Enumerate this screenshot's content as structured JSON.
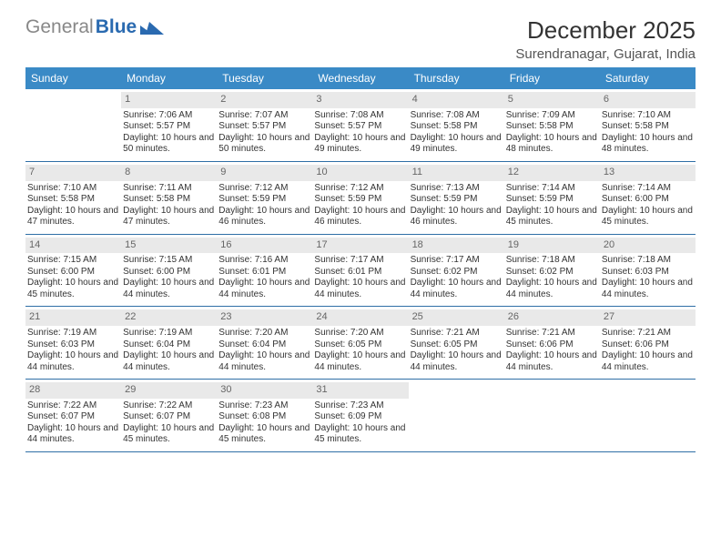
{
  "brand": {
    "part1": "General",
    "part2": "Blue"
  },
  "title": "December 2025",
  "subtitle": "Surendranagar, Gujarat, India",
  "colors": {
    "header_bg": "#3a8ac6",
    "header_text": "#ffffff",
    "row_border": "#2f6fa6",
    "daynum_bg": "#e9e9e9",
    "logo_blue": "#2a6ab0"
  },
  "weekdays": [
    "Sunday",
    "Monday",
    "Tuesday",
    "Wednesday",
    "Thursday",
    "Friday",
    "Saturday"
  ],
  "first_weekday_index": 1,
  "days": [
    {
      "n": 1,
      "sunrise": "7:06 AM",
      "sunset": "5:57 PM",
      "daylight": "10 hours and 50 minutes."
    },
    {
      "n": 2,
      "sunrise": "7:07 AM",
      "sunset": "5:57 PM",
      "daylight": "10 hours and 50 minutes."
    },
    {
      "n": 3,
      "sunrise": "7:08 AM",
      "sunset": "5:57 PM",
      "daylight": "10 hours and 49 minutes."
    },
    {
      "n": 4,
      "sunrise": "7:08 AM",
      "sunset": "5:58 PM",
      "daylight": "10 hours and 49 minutes."
    },
    {
      "n": 5,
      "sunrise": "7:09 AM",
      "sunset": "5:58 PM",
      "daylight": "10 hours and 48 minutes."
    },
    {
      "n": 6,
      "sunrise": "7:10 AM",
      "sunset": "5:58 PM",
      "daylight": "10 hours and 48 minutes."
    },
    {
      "n": 7,
      "sunrise": "7:10 AM",
      "sunset": "5:58 PM",
      "daylight": "10 hours and 47 minutes."
    },
    {
      "n": 8,
      "sunrise": "7:11 AM",
      "sunset": "5:58 PM",
      "daylight": "10 hours and 47 minutes."
    },
    {
      "n": 9,
      "sunrise": "7:12 AM",
      "sunset": "5:59 PM",
      "daylight": "10 hours and 46 minutes."
    },
    {
      "n": 10,
      "sunrise": "7:12 AM",
      "sunset": "5:59 PM",
      "daylight": "10 hours and 46 minutes."
    },
    {
      "n": 11,
      "sunrise": "7:13 AM",
      "sunset": "5:59 PM",
      "daylight": "10 hours and 46 minutes."
    },
    {
      "n": 12,
      "sunrise": "7:14 AM",
      "sunset": "5:59 PM",
      "daylight": "10 hours and 45 minutes."
    },
    {
      "n": 13,
      "sunrise": "7:14 AM",
      "sunset": "6:00 PM",
      "daylight": "10 hours and 45 minutes."
    },
    {
      "n": 14,
      "sunrise": "7:15 AM",
      "sunset": "6:00 PM",
      "daylight": "10 hours and 45 minutes."
    },
    {
      "n": 15,
      "sunrise": "7:15 AM",
      "sunset": "6:00 PM",
      "daylight": "10 hours and 44 minutes."
    },
    {
      "n": 16,
      "sunrise": "7:16 AM",
      "sunset": "6:01 PM",
      "daylight": "10 hours and 44 minutes."
    },
    {
      "n": 17,
      "sunrise": "7:17 AM",
      "sunset": "6:01 PM",
      "daylight": "10 hours and 44 minutes."
    },
    {
      "n": 18,
      "sunrise": "7:17 AM",
      "sunset": "6:02 PM",
      "daylight": "10 hours and 44 minutes."
    },
    {
      "n": 19,
      "sunrise": "7:18 AM",
      "sunset": "6:02 PM",
      "daylight": "10 hours and 44 minutes."
    },
    {
      "n": 20,
      "sunrise": "7:18 AM",
      "sunset": "6:03 PM",
      "daylight": "10 hours and 44 minutes."
    },
    {
      "n": 21,
      "sunrise": "7:19 AM",
      "sunset": "6:03 PM",
      "daylight": "10 hours and 44 minutes."
    },
    {
      "n": 22,
      "sunrise": "7:19 AM",
      "sunset": "6:04 PM",
      "daylight": "10 hours and 44 minutes."
    },
    {
      "n": 23,
      "sunrise": "7:20 AM",
      "sunset": "6:04 PM",
      "daylight": "10 hours and 44 minutes."
    },
    {
      "n": 24,
      "sunrise": "7:20 AM",
      "sunset": "6:05 PM",
      "daylight": "10 hours and 44 minutes."
    },
    {
      "n": 25,
      "sunrise": "7:21 AM",
      "sunset": "6:05 PM",
      "daylight": "10 hours and 44 minutes."
    },
    {
      "n": 26,
      "sunrise": "7:21 AM",
      "sunset": "6:06 PM",
      "daylight": "10 hours and 44 minutes."
    },
    {
      "n": 27,
      "sunrise": "7:21 AM",
      "sunset": "6:06 PM",
      "daylight": "10 hours and 44 minutes."
    },
    {
      "n": 28,
      "sunrise": "7:22 AM",
      "sunset": "6:07 PM",
      "daylight": "10 hours and 44 minutes."
    },
    {
      "n": 29,
      "sunrise": "7:22 AM",
      "sunset": "6:07 PM",
      "daylight": "10 hours and 45 minutes."
    },
    {
      "n": 30,
      "sunrise": "7:23 AM",
      "sunset": "6:08 PM",
      "daylight": "10 hours and 45 minutes."
    },
    {
      "n": 31,
      "sunrise": "7:23 AM",
      "sunset": "6:09 PM",
      "daylight": "10 hours and 45 minutes."
    }
  ],
  "labels": {
    "sunrise": "Sunrise: ",
    "sunset": "Sunset: ",
    "daylight": "Daylight: "
  }
}
